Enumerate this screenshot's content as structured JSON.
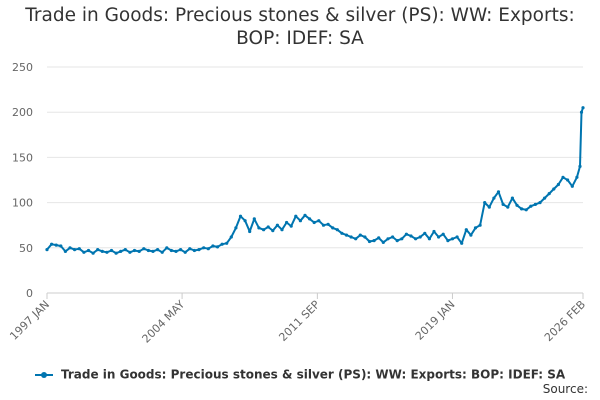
{
  "chart_data": {
    "type": "line",
    "title_lines": [
      "Trade in Goods: Precious stones & silver (PS): WW: Exports:",
      "BOP: IDEF: SA"
    ],
    "ylim": [
      0,
      250
    ],
    "y_ticks": [
      0,
      50,
      100,
      150,
      200,
      250
    ],
    "x_range": [
      1997.0,
      2026.083
    ],
    "x_ticks": [
      {
        "label": "1997 JAN",
        "x": 1997.0
      },
      {
        "label": "2004 MAY",
        "x": 2004.33
      },
      {
        "label": "2011 SEP",
        "x": 2011.67
      },
      {
        "label": "2019 JAN",
        "x": 2019.0
      },
      {
        "label": "2026 FEB",
        "x": 2026.083
      }
    ],
    "series": [
      {
        "name": "Trade in Goods: Precious stones & silver (PS): WW: Exports: BOP: IDEF: SA",
        "color": "#0075b0",
        "x": [
          1997.0,
          1997.25,
          1997.5,
          1997.75,
          1998.0,
          1998.25,
          1998.5,
          1998.75,
          1999.0,
          1999.25,
          1999.5,
          1999.75,
          2000.0,
          2000.25,
          2000.5,
          2000.75,
          2001.0,
          2001.25,
          2001.5,
          2001.75,
          2002.0,
          2002.25,
          2002.5,
          2002.75,
          2003.0,
          2003.25,
          2003.5,
          2003.75,
          2004.0,
          2004.25,
          2004.5,
          2004.75,
          2005.0,
          2005.25,
          2005.5,
          2005.75,
          2006.0,
          2006.25,
          2006.5,
          2006.75,
          2007.0,
          2007.25,
          2007.5,
          2007.75,
          2008.0,
          2008.25,
          2008.5,
          2008.75,
          2009.0,
          2009.25,
          2009.5,
          2009.75,
          2010.0,
          2010.25,
          2010.5,
          2010.75,
          2011.0,
          2011.25,
          2011.5,
          2011.75,
          2012.0,
          2012.25,
          2012.5,
          2012.75,
          2013.0,
          2013.25,
          2013.5,
          2013.75,
          2014.0,
          2014.25,
          2014.5,
          2014.75,
          2015.0,
          2015.25,
          2015.5,
          2015.75,
          2016.0,
          2016.25,
          2016.5,
          2016.75,
          2017.0,
          2017.25,
          2017.5,
          2017.75,
          2018.0,
          2018.25,
          2018.5,
          2018.75,
          2019.0,
          2019.25,
          2019.5,
          2019.75,
          2020.0,
          2020.25,
          2020.5,
          2020.75,
          2021.0,
          2021.25,
          2021.5,
          2021.75,
          2022.0,
          2022.25,
          2022.5,
          2022.75,
          2023.0,
          2023.25,
          2023.5,
          2023.75,
          2024.0,
          2024.25,
          2024.5,
          2024.75,
          2025.0,
          2025.25,
          2025.5,
          2025.75,
          2025.92,
          2026.0,
          2026.083
        ],
        "values": [
          48,
          54,
          53,
          52,
          46,
          50,
          48,
          49,
          45,
          47,
          44,
          48,
          46,
          45,
          47,
          44,
          46,
          48,
          45,
          47,
          46,
          49,
          47,
          46,
          48,
          45,
          50,
          47,
          46,
          48,
          45,
          49,
          47,
          48,
          50,
          49,
          52,
          51,
          54,
          55,
          62,
          72,
          85,
          80,
          68,
          82,
          72,
          70,
          73,
          69,
          75,
          70,
          78,
          74,
          85,
          80,
          86,
          82,
          78,
          80,
          75,
          76,
          72,
          70,
          66,
          64,
          62,
          60,
          64,
          62,
          57,
          58,
          61,
          56,
          60,
          62,
          58,
          60,
          65,
          63,
          60,
          62,
          66,
          60,
          68,
          62,
          65,
          58,
          60,
          62,
          55,
          70,
          64,
          72,
          75,
          100,
          95,
          105,
          112,
          98,
          95,
          105,
          97,
          93,
          92,
          96,
          98,
          100,
          105,
          110,
          115,
          120,
          128,
          125,
          118,
          128,
          140,
          200,
          205
        ]
      }
    ],
    "legend_label": "Trade in Goods: Precious stones & silver (PS): WW: Exports: BOP: IDEF: SA",
    "source_label": "Source:"
  }
}
